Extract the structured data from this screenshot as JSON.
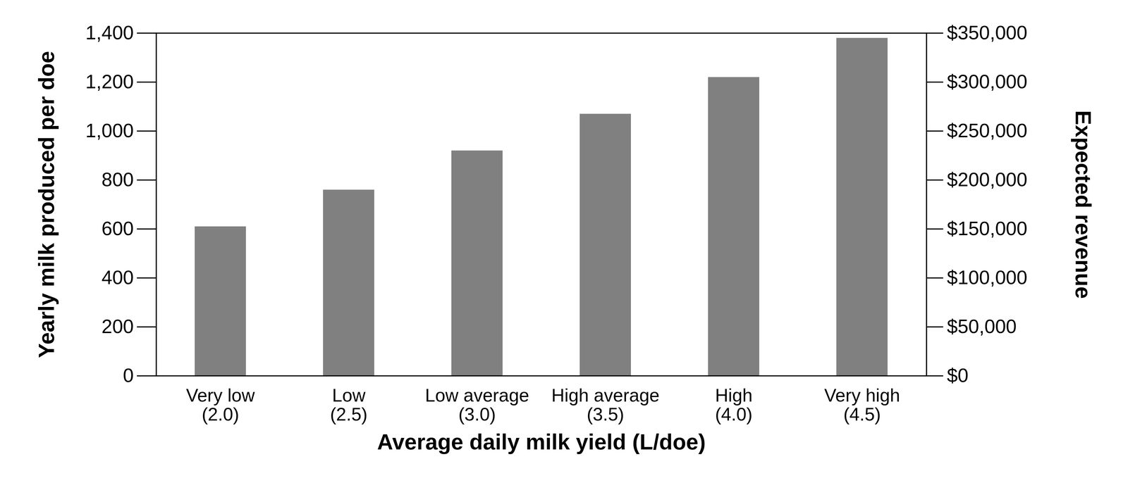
{
  "chart_data": {
    "type": "bar",
    "xlabel": "Average daily milk yield (L/doe)",
    "ylabel": "Yearly milk produced per doe",
    "y2label": "Expected revenue",
    "categories": [
      "Very low\n(2.0)",
      "Low\n(2.5)",
      "Low average\n(3.0)",
      "High average\n(3.5)",
      "High\n(4.0)",
      "Very high\n(4.5)"
    ],
    "values": [
      610,
      760,
      920,
      1070,
      1220,
      1380
    ],
    "color": "#808080",
    "ylim": [
      0,
      1400
    ],
    "yticks": [
      0,
      200,
      400,
      600,
      800,
      {
        "value": 1000,
        "label": "1,000"
      },
      {
        "value": 1200,
        "label": "1,200"
      },
      {
        "value": 1400,
        "label": "1,400"
      }
    ],
    "y2lim": [
      0,
      350000
    ],
    "y2ticks": [
      {
        "value": 0,
        "label": "$0"
      },
      {
        "value": 50000,
        "label": "$50,000"
      },
      {
        "value": 100000,
        "label": "$100,000"
      },
      {
        "value": 150000,
        "label": "$150,000"
      },
      {
        "value": 200000,
        "label": "$200,000"
      },
      {
        "value": 250000,
        "label": "$250,000"
      },
      {
        "value": 300000,
        "label": "$300,000"
      },
      {
        "value": 350000,
        "label": "$350,000"
      }
    ],
    "grid": false
  }
}
